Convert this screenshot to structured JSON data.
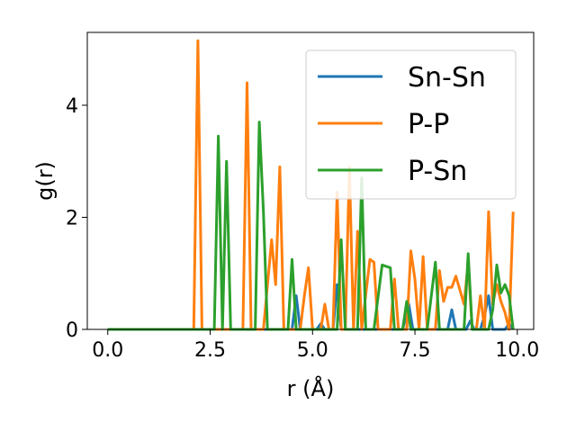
{
  "chart_data": {
    "type": "line",
    "title": "",
    "xlabel": "r (Å)",
    "ylabel": "g(r)",
    "xlim": [
      -0.5,
      10.4
    ],
    "ylim": [
      0,
      5.3
    ],
    "xticks": [
      0.0,
      2.5,
      5.0,
      7.5,
      10.0
    ],
    "xtick_labels": [
      "0.0",
      "2.5",
      "5.0",
      "7.5",
      "10.0"
    ],
    "yticks": [
      0,
      2,
      4
    ],
    "ytick_labels": [
      "0",
      "2",
      "4"
    ],
    "grid": false,
    "legend_position": "top-right",
    "series": [
      {
        "name": "Sn-Sn",
        "color": "#1f77b4",
        "points": [
          [
            0.0,
            0
          ],
          [
            4.5,
            0
          ],
          [
            4.6,
            0.6
          ],
          [
            4.7,
            0
          ],
          [
            5.1,
            0
          ],
          [
            5.2,
            0.1
          ],
          [
            5.3,
            0
          ],
          [
            5.5,
            0
          ],
          [
            5.6,
            0.8
          ],
          [
            5.7,
            0
          ],
          [
            7.2,
            0
          ],
          [
            7.35,
            0.45
          ],
          [
            7.45,
            0
          ],
          [
            8.3,
            0
          ],
          [
            8.4,
            0.35
          ],
          [
            8.5,
            0
          ],
          [
            8.75,
            0
          ],
          [
            8.85,
            0.15
          ],
          [
            8.95,
            0
          ],
          [
            9.1,
            0
          ],
          [
            9.2,
            0.25
          ],
          [
            9.3,
            0.6
          ],
          [
            9.4,
            0
          ],
          [
            9.7,
            0
          ],
          [
            9.8,
            0.1
          ],
          [
            9.9,
            0
          ]
        ]
      },
      {
        "name": "P-P",
        "color": "#ff7f0e",
        "points": [
          [
            0.0,
            0
          ],
          [
            2.1,
            0
          ],
          [
            2.2,
            5.15
          ],
          [
            2.3,
            0
          ],
          [
            3.3,
            0
          ],
          [
            3.4,
            4.4
          ],
          [
            3.5,
            0
          ],
          [
            3.8,
            0
          ],
          [
            4.0,
            1.6
          ],
          [
            4.1,
            0.8
          ],
          [
            4.2,
            2.9
          ],
          [
            4.3,
            0
          ],
          [
            4.7,
            0
          ],
          [
            4.8,
            0.6
          ],
          [
            4.9,
            1.1
          ],
          [
            5.0,
            0
          ],
          [
            5.2,
            0
          ],
          [
            5.3,
            0.45
          ],
          [
            5.4,
            0
          ],
          [
            5.5,
            0
          ],
          [
            5.6,
            2.45
          ],
          [
            5.7,
            0
          ],
          [
            5.8,
            0
          ],
          [
            5.9,
            2.9
          ],
          [
            6.0,
            0
          ],
          [
            6.1,
            1.75
          ],
          [
            6.2,
            0
          ],
          [
            6.4,
            1.25
          ],
          [
            6.5,
            1.2
          ],
          [
            6.6,
            0
          ],
          [
            6.9,
            0
          ],
          [
            7.0,
            0.9
          ],
          [
            7.1,
            0
          ],
          [
            7.3,
            0
          ],
          [
            7.4,
            1.4
          ],
          [
            7.5,
            0.9
          ],
          [
            7.6,
            0
          ],
          [
            7.7,
            1.3
          ],
          [
            7.8,
            0
          ],
          [
            8.0,
            0
          ],
          [
            8.1,
            1.05
          ],
          [
            8.2,
            0.5
          ],
          [
            8.3,
            0.75
          ],
          [
            8.4,
            0.75
          ],
          [
            8.5,
            0.95
          ],
          [
            8.6,
            0.7
          ],
          [
            8.7,
            0.45
          ],
          [
            8.8,
            1.2
          ],
          [
            8.9,
            0
          ],
          [
            9.0,
            0
          ],
          [
            9.1,
            0.6
          ],
          [
            9.2,
            0
          ],
          [
            9.3,
            2.1
          ],
          [
            9.4,
            0.45
          ],
          [
            9.5,
            0.8
          ],
          [
            9.6,
            0.5
          ],
          [
            9.7,
            0.3
          ],
          [
            9.8,
            0
          ],
          [
            9.9,
            2.1
          ]
        ]
      },
      {
        "name": "P-Sn",
        "color": "#2ca02c",
        "points": [
          [
            0.0,
            0
          ],
          [
            2.6,
            0
          ],
          [
            2.7,
            3.45
          ],
          [
            2.8,
            0
          ],
          [
            2.9,
            3.0
          ],
          [
            3.0,
            0
          ],
          [
            3.6,
            0
          ],
          [
            3.7,
            3.7
          ],
          [
            3.8,
            2.1
          ],
          [
            3.9,
            0
          ],
          [
            4.4,
            0
          ],
          [
            4.5,
            1.25
          ],
          [
            4.6,
            0
          ],
          [
            5.6,
            0
          ],
          [
            5.7,
            1.6
          ],
          [
            5.8,
            0
          ],
          [
            6.1,
            0
          ],
          [
            6.2,
            2.7
          ],
          [
            6.3,
            0
          ],
          [
            6.5,
            0
          ],
          [
            6.7,
            1.15
          ],
          [
            6.9,
            1.1
          ],
          [
            7.0,
            0
          ],
          [
            7.2,
            0
          ],
          [
            7.3,
            0.5
          ],
          [
            7.4,
            0
          ],
          [
            7.8,
            0
          ],
          [
            8.0,
            1.2
          ],
          [
            8.1,
            0
          ],
          [
            8.7,
            0
          ],
          [
            8.8,
            1.35
          ],
          [
            8.9,
            0
          ],
          [
            9.3,
            0
          ],
          [
            9.4,
            0.35
          ],
          [
            9.5,
            1.15
          ],
          [
            9.6,
            0.65
          ],
          [
            9.7,
            0.8
          ],
          [
            9.8,
            0.6
          ],
          [
            9.9,
            0
          ]
        ]
      }
    ]
  }
}
